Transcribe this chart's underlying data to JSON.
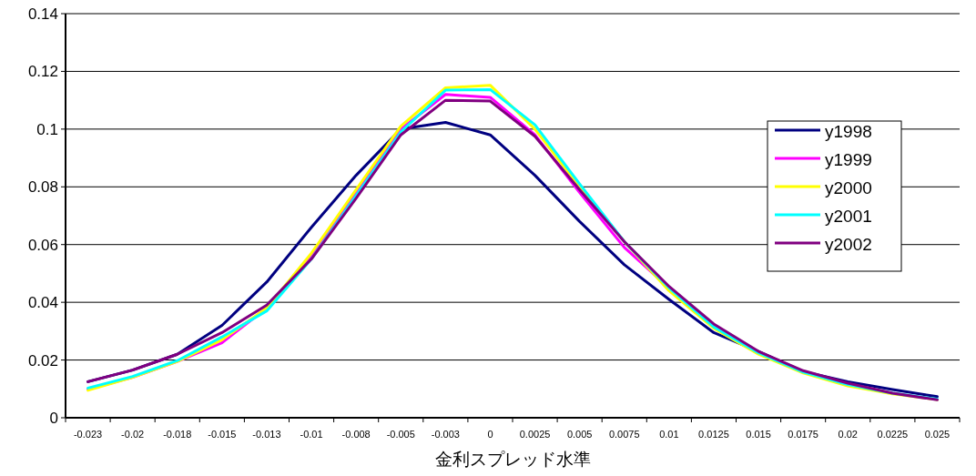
{
  "chart_data": {
    "type": "line",
    "xlabel": "金利スプレッド水準",
    "categories": [
      "-0.023",
      "-0.02",
      "-0.018",
      "-0.015",
      "-0.013",
      "-0.01",
      "-0.008",
      "-0.005",
      "-0.003",
      "0",
      "0.0025",
      "0.005",
      "0.0075",
      "0.01",
      "0.0125",
      "0.015",
      "0.0175",
      "0.02",
      "0.0225",
      "0.025"
    ],
    "series": [
      {
        "name": "y1998",
        "color": "#000080",
        "values": [
          0.0125,
          0.0165,
          0.022,
          0.032,
          0.047,
          0.066,
          0.084,
          0.1,
          0.1023,
          0.098,
          0.084,
          0.068,
          0.053,
          0.041,
          0.0295,
          0.023,
          0.016,
          0.0125,
          0.0098,
          0.0073
        ]
      },
      {
        "name": "y1999",
        "color": "#ff00ff",
        "values": [
          0.0098,
          0.014,
          0.0195,
          0.026,
          0.038,
          0.056,
          0.078,
          0.1,
          0.112,
          0.111,
          0.098,
          0.078,
          0.059,
          0.045,
          0.032,
          null,
          null,
          null,
          null,
          null
        ]
      },
      {
        "name": "y2000",
        "color": "#ffff00",
        "values": [
          0.0095,
          0.014,
          0.0195,
          0.027,
          0.038,
          0.057,
          0.079,
          0.101,
          0.1143,
          0.1152,
          0.1,
          0.08,
          0.061,
          0.044,
          0.031,
          0.022,
          0.0155,
          0.011,
          0.0083,
          0.0063
        ]
      },
      {
        "name": "y2001",
        "color": "#00ffff",
        "values": [
          0.0103,
          0.0143,
          0.0198,
          0.028,
          0.037,
          0.055,
          0.077,
          0.099,
          0.1135,
          0.1137,
          0.1015,
          0.081,
          0.061,
          0.045,
          0.0315,
          0.0225,
          0.0158,
          0.0115,
          0.0085,
          0.0065
        ]
      },
      {
        "name": "y2002",
        "color": "#800080",
        "values": [
          0.0125,
          0.0165,
          0.022,
          0.0295,
          0.039,
          0.055,
          0.076,
          0.098,
          0.11,
          0.1097,
          0.0975,
          0.079,
          0.061,
          0.0455,
          0.0325,
          0.023,
          0.0163,
          0.012,
          0.0085,
          0.0062
        ]
      }
    ],
    "ylim": [
      0,
      0.14
    ],
    "yticks": [
      0,
      0.02,
      0.04,
      0.06,
      0.08,
      0.1,
      0.12,
      0.14
    ],
    "grid": "y",
    "legend": "right",
    "marker": "none",
    "line_style": "solid"
  }
}
